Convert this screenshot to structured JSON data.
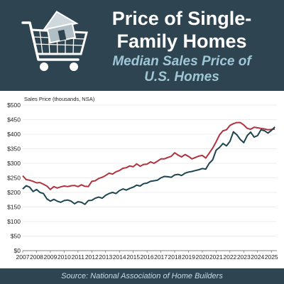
{
  "header": {
    "title_line1": "Price of Single-",
    "title_line2": "Family Homes",
    "subtitle_line1": "Median Sales Price of",
    "subtitle_line2": "U.S. Homes",
    "icon": "shopping-cart-with-house-icon"
  },
  "footer": {
    "source": "Source: National Association of Home Builders"
  },
  "colors": {
    "header_bg": "#2e4450",
    "new_homes_line": "#b0323f",
    "existing_homes_line": "#1d4550",
    "subtitle": "#9fc7d6"
  },
  "chart_data": {
    "type": "line",
    "ylabel": "Sales Price (thousands, NSA)",
    "ylim": [
      0,
      500
    ],
    "y_ticks": [
      "$0",
      "$50",
      "$100",
      "$150",
      "$200",
      "$250",
      "$300",
      "$350",
      "$400",
      "$450",
      "$500"
    ],
    "y_tick_values": [
      0,
      50,
      100,
      150,
      200,
      250,
      300,
      350,
      400,
      450,
      500
    ],
    "x_ticks": [
      "2007",
      "2008",
      "2009",
      "2010",
      "2011",
      "2012",
      "2013",
      "2014",
      "2015",
      "2016",
      "2017",
      "2018",
      "2019",
      "2020",
      "2021",
      "2022",
      "2023",
      "2024",
      "2025"
    ],
    "x_tick_values": [
      2007,
      2008,
      2009,
      2010,
      2011,
      2012,
      2013,
      2014,
      2015,
      2016,
      2017,
      2018,
      2019,
      2020,
      2021,
      2022,
      2023,
      2024,
      2025
    ],
    "xlim": [
      2007,
      2025.4
    ],
    "grid": "horizontal",
    "legend": "none",
    "series": [
      {
        "x": [
          2007.0,
          2007.25,
          2007.5,
          2007.75,
          2008.0,
          2008.25,
          2008.5,
          2008.75,
          2009.0,
          2009.25,
          2009.5,
          2009.75,
          2010.0,
          2010.25,
          2010.5,
          2010.75,
          2011.0,
          2011.25,
          2011.5,
          2011.75,
          2012.0,
          2012.25,
          2012.5,
          2012.75,
          2013.0,
          2013.25,
          2013.5,
          2013.75,
          2014.0,
          2014.25,
          2014.5,
          2014.75,
          2015.0,
          2015.25,
          2015.5,
          2015.75,
          2016.0,
          2016.25,
          2016.5,
          2016.75,
          2017.0,
          2017.25,
          2017.5,
          2017.75,
          2018.0,
          2018.25,
          2018.5,
          2018.75,
          2019.0,
          2019.25,
          2019.5,
          2019.75,
          2020.0,
          2020.25,
          2020.5,
          2020.75,
          2021.0,
          2021.25,
          2021.5,
          2021.75,
          2022.0,
          2022.25,
          2022.5,
          2022.75,
          2023.0,
          2023.25,
          2023.5,
          2023.75,
          2024.0,
          2024.25,
          2024.5,
          2024.75,
          2025.0,
          2025.25
        ],
        "values": [
          257,
          244,
          242,
          238,
          233,
          234,
          228,
          222,
          210,
          220,
          215,
          219,
          222,
          220,
          223,
          224,
          220,
          226,
          221,
          220,
          238,
          240,
          248,
          252,
          258,
          266,
          263,
          271,
          275,
          283,
          285,
          291,
          288,
          298,
          290,
          296,
          297,
          305,
          300,
          307,
          315,
          315,
          320,
          324,
          336,
          328,
          322,
          330,
          324,
          315,
          320,
          325,
          327,
          318,
          335,
          352,
          374,
          398,
          412,
          415,
          430,
          436,
          440,
          440,
          432,
          420,
          417,
          424,
          422,
          420,
          418,
          415,
          416,
          418
        ]
      },
      {
        "x": [
          2007.0,
          2007.25,
          2007.5,
          2007.75,
          2008.0,
          2008.25,
          2008.5,
          2008.75,
          2009.0,
          2009.25,
          2009.5,
          2009.75,
          2010.0,
          2010.25,
          2010.5,
          2010.75,
          2011.0,
          2011.25,
          2011.5,
          2011.75,
          2012.0,
          2012.25,
          2012.5,
          2012.75,
          2013.0,
          2013.25,
          2013.5,
          2013.75,
          2014.0,
          2014.25,
          2014.5,
          2014.75,
          2015.0,
          2015.25,
          2015.5,
          2015.75,
          2016.0,
          2016.25,
          2016.5,
          2016.75,
          2017.0,
          2017.25,
          2017.5,
          2017.75,
          2018.0,
          2018.25,
          2018.5,
          2018.75,
          2019.0,
          2019.25,
          2019.5,
          2019.75,
          2020.0,
          2020.25,
          2020.5,
          2020.75,
          2021.0,
          2021.25,
          2021.5,
          2021.75,
          2022.0,
          2022.25,
          2022.5,
          2022.75,
          2023.0,
          2023.25,
          2023.5,
          2023.75,
          2024.0,
          2024.25,
          2024.5,
          2024.75,
          2025.0,
          2025.25
        ],
        "values": [
          212,
          223,
          218,
          203,
          210,
          200,
          196,
          178,
          170,
          176,
          170,
          166,
          172,
          174,
          170,
          161,
          168,
          166,
          159,
          172,
          173,
          180,
          184,
          180,
          190,
          196,
          200,
          196,
          206,
          212,
          208,
          214,
          218,
          225,
          222,
          230,
          232,
          238,
          240,
          242,
          250,
          255,
          254,
          252,
          260,
          262,
          258,
          266,
          270,
          272,
          275,
          278,
          282,
          280,
          300,
          312,
          345,
          355,
          368,
          360,
          375,
          408,
          398,
          382,
          371,
          395,
          407,
          390,
          395,
          415,
          412,
          404,
          413,
          425
        ]
      }
    ]
  }
}
